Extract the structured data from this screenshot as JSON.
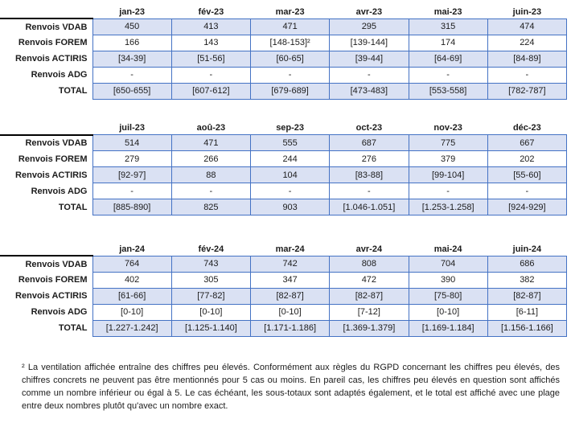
{
  "colors": {
    "border": "#4472C4",
    "fill_alt": "#DAE1F3",
    "fill_plain": "#FFFFFF",
    "header_line": "#000000"
  },
  "tables": [
    {
      "months": [
        "jan-23",
        "fév-23",
        "mar-23",
        "avr-23",
        "mai-23",
        "juin-23"
      ],
      "rows": [
        {
          "label": "Renvois VDAB",
          "values": [
            "450",
            "413",
            "471",
            "295",
            "315",
            "474"
          ]
        },
        {
          "label": "Renvois FOREM",
          "values": [
            "166",
            "143",
            "[148-153]²",
            "[139-144]",
            "174",
            "224"
          ]
        },
        {
          "label": "Renvois ACTIRIS",
          "values": [
            "[34-39]",
            "[51-56]",
            "[60-65]",
            "[39-44]",
            "[64-69]",
            "[84-89]"
          ]
        },
        {
          "label": "Renvois ADG",
          "values": [
            "-",
            "-",
            "-",
            "-",
            "-",
            "-"
          ]
        },
        {
          "label": "TOTAL",
          "values": [
            "[650-655]",
            "[607-612]",
            "[679-689]",
            "[473-483]",
            "[553-558]",
            "[782-787]"
          ]
        }
      ]
    },
    {
      "months": [
        "juil-23",
        "aoû-23",
        "sep-23",
        "oct-23",
        "nov-23",
        "déc-23"
      ],
      "rows": [
        {
          "label": "Renvois VDAB",
          "values": [
            "514",
            "471",
            "555",
            "687",
            "775",
            "667"
          ]
        },
        {
          "label": "Renvois FOREM",
          "values": [
            "279",
            "266",
            "244",
            "276",
            "379",
            "202"
          ]
        },
        {
          "label": "Renvois ACTIRIS",
          "values": [
            "[92-97]",
            "88",
            "104",
            "[83-88]",
            "[99-104]",
            "[55-60]"
          ]
        },
        {
          "label": "Renvois ADG",
          "values": [
            "-",
            "-",
            "-",
            "-",
            "-",
            "-"
          ]
        },
        {
          "label": "TOTAL",
          "values": [
            "[885-890]",
            "825",
            "903",
            "[1.046-1.051]",
            "[1.253-1.258]",
            "[924-929]"
          ]
        }
      ]
    },
    {
      "months": [
        "jan-24",
        "fév-24",
        "mar-24",
        "avr-24",
        "mai-24",
        "juin-24"
      ],
      "rows": [
        {
          "label": "Renvois VDAB",
          "values": [
            "764",
            "743",
            "742",
            "808",
            "704",
            "686"
          ]
        },
        {
          "label": "Renvois FOREM",
          "values": [
            "402",
            "305",
            "347",
            "472",
            "390",
            "382"
          ]
        },
        {
          "label": "Renvois ACTIRIS",
          "values": [
            "[61-66]",
            "[77-82]",
            "[82-87]",
            "[82-87]",
            "[75-80]",
            "[82-87]"
          ]
        },
        {
          "label": "Renvois ADG",
          "values": [
            "[0-10]",
            "[0-10]",
            "[0-10]",
            "[7-12]",
            "[0-10]",
            "[6-11]"
          ]
        },
        {
          "label": "TOTAL",
          "values": [
            "[1.227-1.242]",
            "[1.125-1.140]",
            "[1.171-1.186]",
            "[1.369-1.379]",
            "[1.169-1.184]",
            "[1.156-1.166]"
          ]
        }
      ]
    }
  ],
  "footnote": "² La ventilation affichée entraîne des chiffres peu élevés. Conformément aux règles du RGPD concernant les chiffres peu élevés, des chiffres concrets ne peuvent pas être mentionnés pour 5 cas ou moins. En pareil cas, les chiffres peu élevés en question sont affichés comme un nombre inférieur ou égal à 5. Le cas échéant, les sous-totaux sont adaptés également, et le total est affiché avec une plage entre deux nombres plutôt qu'avec un nombre exact."
}
